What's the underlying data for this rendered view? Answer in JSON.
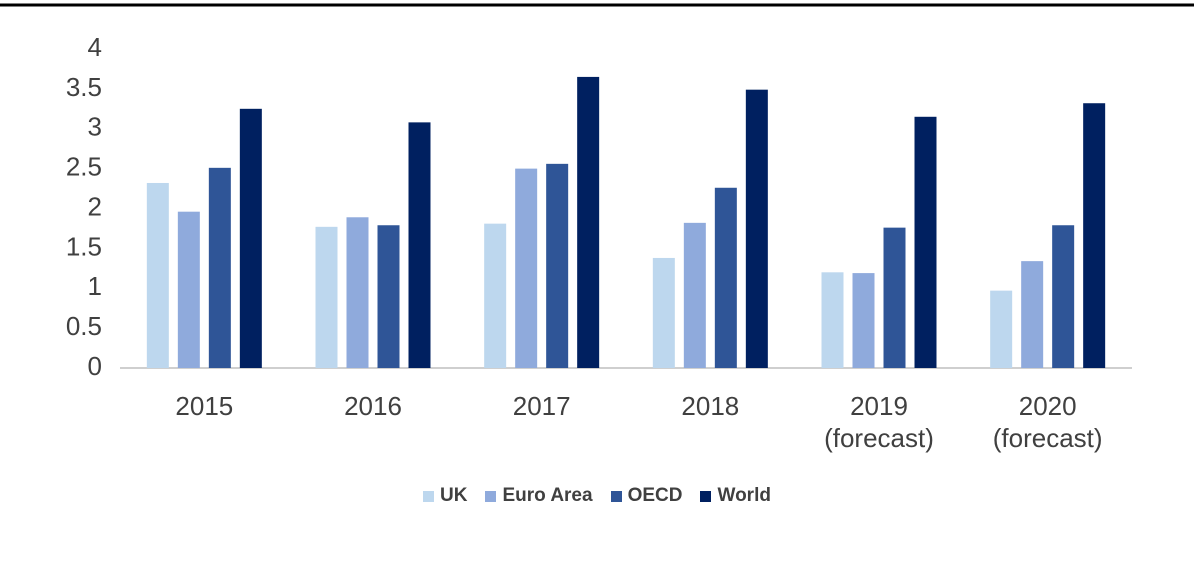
{
  "chart_data": {
    "type": "bar",
    "categories": [
      "2015",
      "2016",
      "2017",
      "2018",
      "2019 (forecast)",
      "2020 (forecast)"
    ],
    "series": [
      {
        "name": "UK",
        "color": "#bdd7ee",
        "values": [
          2.32,
          1.77,
          1.81,
          1.38,
          1.2,
          0.97
        ]
      },
      {
        "name": "Euro Area",
        "color": "#8faadc",
        "values": [
          1.96,
          1.89,
          2.5,
          1.82,
          1.19,
          1.34
        ]
      },
      {
        "name": "OECD",
        "color": "#2f5597",
        "values": [
          2.51,
          1.79,
          2.56,
          2.26,
          1.76,
          1.79
        ]
      },
      {
        "name": "World",
        "color": "#002060",
        "values": [
          3.25,
          3.08,
          3.65,
          3.49,
          3.15,
          3.32
        ]
      }
    ],
    "ylim": [
      0,
      4
    ],
    "yticks": [
      0,
      0.5,
      1,
      1.5,
      2,
      2.5,
      3,
      3.5,
      4
    ],
    "grid": false,
    "legend": "bottom"
  }
}
